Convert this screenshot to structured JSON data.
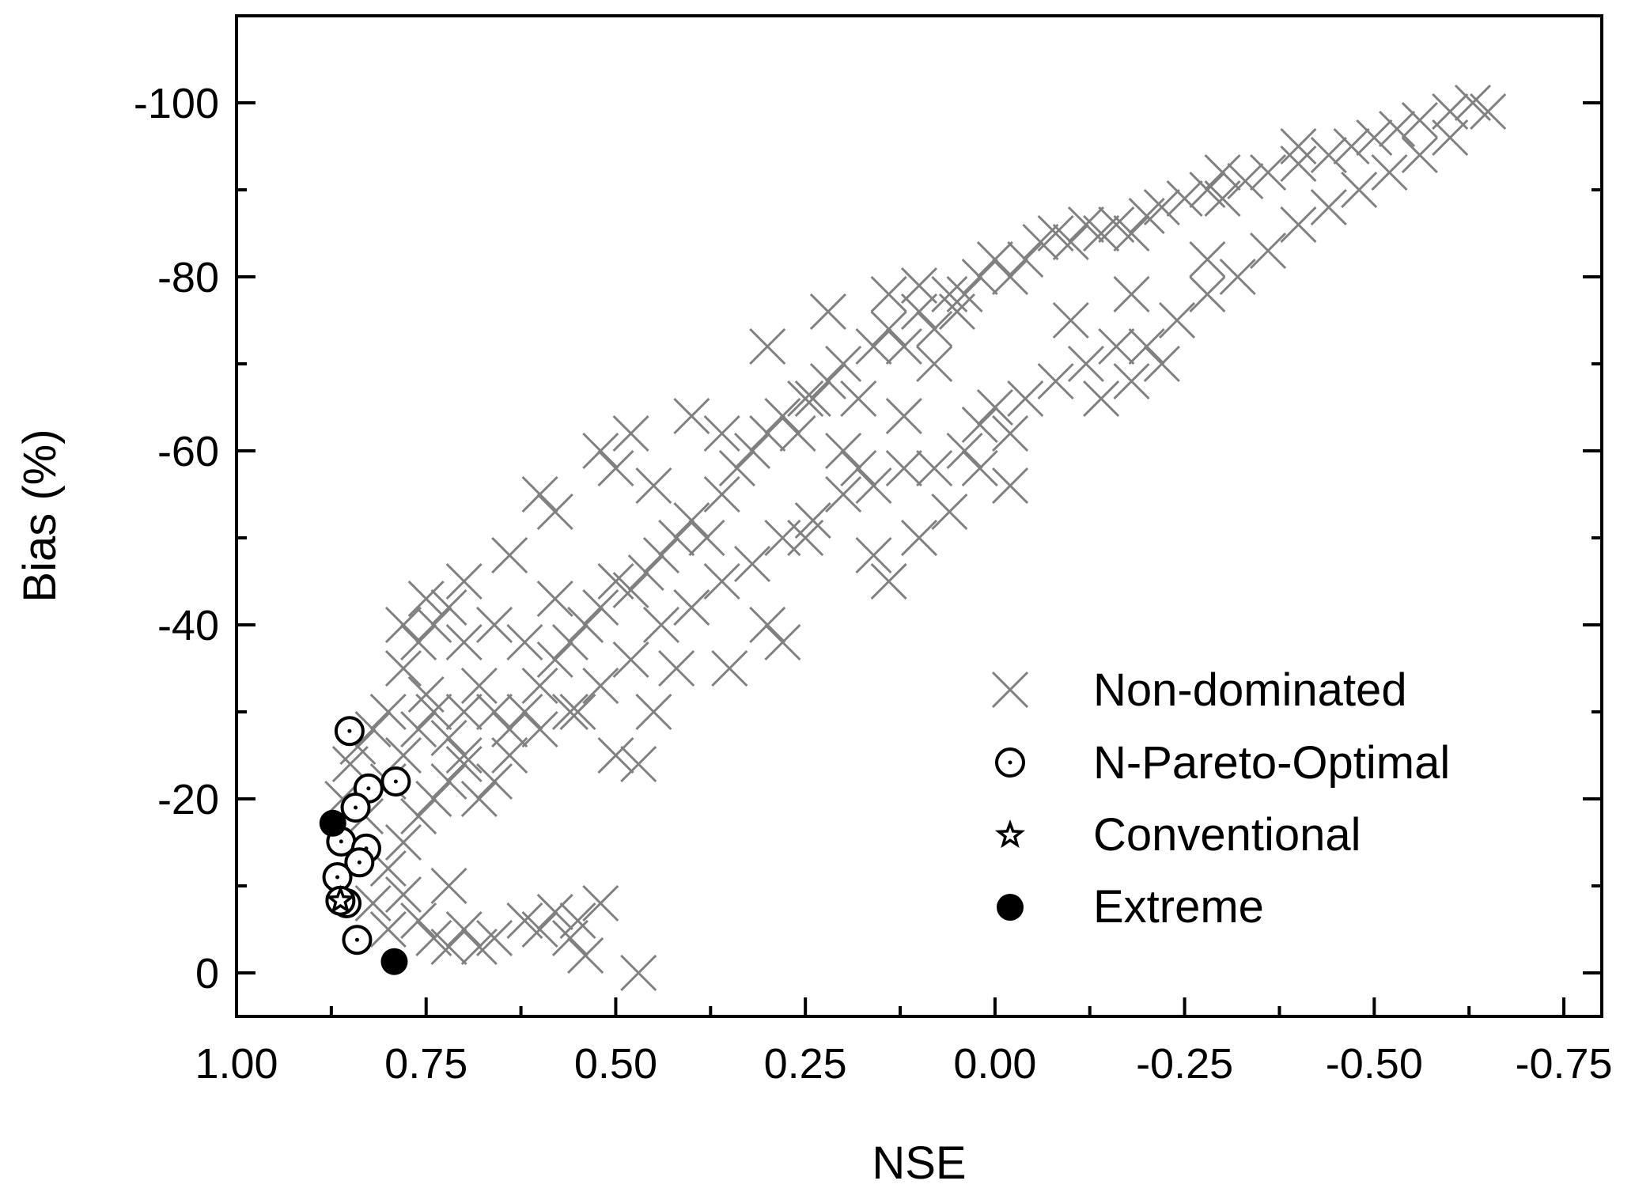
{
  "chart_data": {
    "type": "scatter",
    "xlabel": "NSE",
    "ylabel": "Bias (%)",
    "xlim": [
      1.0,
      -0.8
    ],
    "ylim": [
      5,
      -110
    ],
    "x_reversed": true,
    "y_reversed": true,
    "grid": false,
    "legend_placement": "bottom-right",
    "x_ticks": [
      "1.00",
      "0.75",
      "0.50",
      "0.25",
      "0.00",
      "-0.25",
      "-0.50",
      "-0.75"
    ],
    "x_tick_values": [
      1.0,
      0.75,
      0.5,
      0.25,
      0.0,
      -0.25,
      -0.5,
      -0.75
    ],
    "y_ticks": [
      "-100",
      "-80",
      "-60",
      "-40",
      "-20",
      "0"
    ],
    "y_tick_values": [
      -100,
      -80,
      -60,
      -40,
      -20,
      0
    ],
    "colors": {
      "non_dominated": "#808080",
      "markers": "#000000"
    },
    "series": [
      {
        "name": "Non-dominated",
        "marker": "x",
        "points": [
          [
            0.86,
            -20
          ],
          [
            0.85,
            -24
          ],
          [
            0.84,
            -26
          ],
          [
            0.82,
            -28
          ],
          [
            0.8,
            -30
          ],
          [
            0.83,
            -18
          ],
          [
            0.8,
            -22
          ],
          [
            0.78,
            -25
          ],
          [
            0.76,
            -28
          ],
          [
            0.74,
            -30
          ],
          [
            0.72,
            -27
          ],
          [
            0.7,
            -25
          ],
          [
            0.78,
            -35
          ],
          [
            0.76,
            -38
          ],
          [
            0.74,
            -40
          ],
          [
            0.72,
            -42
          ],
          [
            0.7,
            -38
          ],
          [
            0.68,
            -33
          ],
          [
            0.66,
            -30
          ],
          [
            0.64,
            -28
          ],
          [
            0.62,
            -30
          ],
          [
            0.6,
            -33
          ],
          [
            0.58,
            -36
          ],
          [
            0.56,
            -38
          ],
          [
            0.54,
            -40
          ],
          [
            0.52,
            -42
          ],
          [
            0.5,
            -45
          ],
          [
            0.48,
            -44
          ],
          [
            0.46,
            -46
          ],
          [
            0.44,
            -48
          ],
          [
            0.42,
            -50
          ],
          [
            0.4,
            -52
          ],
          [
            0.38,
            -50
          ],
          [
            0.36,
            -55
          ],
          [
            0.34,
            -58
          ],
          [
            0.32,
            -60
          ],
          [
            0.3,
            -62
          ],
          [
            0.28,
            -64
          ],
          [
            0.26,
            -62
          ],
          [
            0.24,
            -66
          ],
          [
            0.22,
            -68
          ],
          [
            0.2,
            -70
          ],
          [
            0.18,
            -66
          ],
          [
            0.16,
            -72
          ],
          [
            0.14,
            -74
          ],
          [
            0.12,
            -72
          ],
          [
            0.1,
            -76
          ],
          [
            0.08,
            -74
          ],
          [
            0.06,
            -78
          ],
          [
            0.04,
            -78
          ],
          [
            0.02,
            -80
          ],
          [
            0.0,
            -82
          ],
          [
            -0.02,
            -80
          ],
          [
            -0.04,
            -82
          ],
          [
            -0.06,
            -84
          ],
          [
            -0.08,
            -85
          ],
          [
            -0.1,
            -84
          ],
          [
            -0.12,
            -86
          ],
          [
            -0.14,
            -85
          ],
          [
            -0.16,
            -86
          ],
          [
            -0.18,
            -85
          ],
          [
            -0.2,
            -87
          ],
          [
            -0.22,
            -88
          ],
          [
            -0.25,
            -89
          ],
          [
            -0.28,
            -90
          ],
          [
            -0.3,
            -89
          ],
          [
            -0.33,
            -91
          ],
          [
            -0.36,
            -92
          ],
          [
            -0.4,
            -93
          ],
          [
            -0.44,
            -94
          ],
          [
            -0.47,
            -95
          ],
          [
            -0.5,
            -96
          ],
          [
            -0.53,
            -97
          ],
          [
            -0.56,
            -98
          ],
          [
            -0.6,
            -99
          ],
          [
            -0.63,
            -100
          ],
          [
            -0.65,
            -99
          ],
          [
            0.8,
            -12
          ],
          [
            0.78,
            -15
          ],
          [
            0.76,
            -18
          ],
          [
            0.74,
            -20
          ],
          [
            0.72,
            -22
          ],
          [
            0.7,
            -24
          ],
          [
            0.68,
            -20
          ],
          [
            0.66,
            -22
          ],
          [
            0.64,
            -25
          ],
          [
            0.6,
            -28
          ],
          [
            0.56,
            -30
          ],
          [
            0.52,
            -33
          ],
          [
            0.48,
            -36
          ],
          [
            0.44,
            -40
          ],
          [
            0.4,
            -42
          ],
          [
            0.36,
            -45
          ],
          [
            0.32,
            -47
          ],
          [
            0.28,
            -50
          ],
          [
            0.24,
            -52
          ],
          [
            0.2,
            -55
          ],
          [
            0.16,
            -56
          ],
          [
            0.12,
            -58
          ],
          [
            0.08,
            -58
          ],
          [
            0.04,
            -60
          ],
          [
            0.02,
            -63
          ],
          [
            0.0,
            -65
          ],
          [
            -0.02,
            -62
          ],
          [
            -0.04,
            -66
          ],
          [
            -0.08,
            -68
          ],
          [
            -0.12,
            -70
          ],
          [
            -0.16,
            -72
          ],
          [
            -0.2,
            -72
          ],
          [
            -0.24,
            -75
          ],
          [
            -0.28,
            -78
          ],
          [
            -0.32,
            -80
          ],
          [
            -0.36,
            -83
          ],
          [
            -0.4,
            -86
          ],
          [
            -0.44,
            -88
          ],
          [
            -0.48,
            -90
          ],
          [
            -0.52,
            -92
          ],
          [
            -0.56,
            -94
          ],
          [
            -0.6,
            -96
          ],
          [
            -0.14,
            -66
          ],
          [
            -0.18,
            -68
          ],
          [
            0.82,
            -8
          ],
          [
            0.8,
            -5
          ],
          [
            0.78,
            -9
          ],
          [
            0.76,
            -6
          ],
          [
            0.74,
            -4
          ],
          [
            0.72,
            -3
          ],
          [
            0.7,
            -5
          ],
          [
            0.68,
            -3
          ],
          [
            0.66,
            -4
          ],
          [
            0.72,
            -10
          ],
          [
            0.6,
            -5
          ],
          [
            0.58,
            -7
          ],
          [
            0.56,
            -4
          ],
          [
            0.54,
            -2
          ],
          [
            0.52,
            -8
          ],
          [
            0.47,
            0
          ],
          [
            0.62,
            -6
          ],
          [
            0.55,
            -6
          ],
          [
            0.6,
            -55
          ],
          [
            0.58,
            -53
          ],
          [
            0.52,
            -60
          ],
          [
            0.5,
            -58
          ],
          [
            0.48,
            -62
          ],
          [
            0.45,
            -56
          ],
          [
            0.4,
            -64
          ],
          [
            0.36,
            -62
          ],
          [
            0.3,
            -72
          ],
          [
            0.25,
            -66
          ],
          [
            0.2,
            -60
          ],
          [
            0.22,
            -76
          ],
          [
            0.1,
            -79
          ],
          [
            0.08,
            -70
          ],
          [
            0.14,
            -78
          ],
          [
            0.05,
            -76
          ],
          [
            0.5,
            -25
          ],
          [
            0.47,
            -24
          ],
          [
            0.55,
            -30
          ],
          [
            0.3,
            -40
          ],
          [
            0.28,
            -38
          ],
          [
            0.35,
            -35
          ],
          [
            0.45,
            -30
          ],
          [
            0.42,
            -35
          ],
          [
            0.16,
            -48
          ],
          [
            0.14,
            -45
          ],
          [
            0.1,
            -50
          ],
          [
            0.06,
            -53
          ],
          [
            0.18,
            -58
          ],
          [
            0.25,
            -50
          ],
          [
            0.12,
            -64
          ],
          [
            -0.02,
            -56
          ],
          [
            0.02,
            -58
          ],
          [
            -0.1,
            -75
          ],
          [
            -0.18,
            -78
          ],
          [
            -0.22,
            -70
          ],
          [
            -0.28,
            -82
          ],
          [
            -0.3,
            -92
          ],
          [
            -0.4,
            -95
          ],
          [
            0.75,
            -43
          ],
          [
            0.7,
            -45
          ],
          [
            0.66,
            -40
          ],
          [
            0.62,
            -38
          ],
          [
            0.58,
            -43
          ],
          [
            0.64,
            -48
          ],
          [
            0.78,
            -40
          ],
          [
            0.75,
            -32
          ],
          [
            0.7,
            -30
          ]
        ]
      },
      {
        "name": "N-Pareto-Optimal",
        "marker": "dotted-circle",
        "points": [
          [
            0.851,
            -27.8
          ],
          [
            0.826,
            -21.2
          ],
          [
            0.79,
            -22
          ],
          [
            0.843,
            -19
          ],
          [
            0.862,
            -15.1
          ],
          [
            0.829,
            -14.3
          ],
          [
            0.838,
            -12.7
          ],
          [
            0.867,
            -11
          ],
          [
            0.855,
            -8
          ],
          [
            0.841,
            -3.8
          ]
        ]
      },
      {
        "name": "Conventional",
        "marker": "star",
        "points": [
          [
            0.863,
            -8.3
          ]
        ]
      },
      {
        "name": "Extreme",
        "marker": "filled-circle",
        "points": [
          [
            0.873,
            -17.2
          ],
          [
            0.792,
            -1.3
          ]
        ]
      }
    ]
  }
}
